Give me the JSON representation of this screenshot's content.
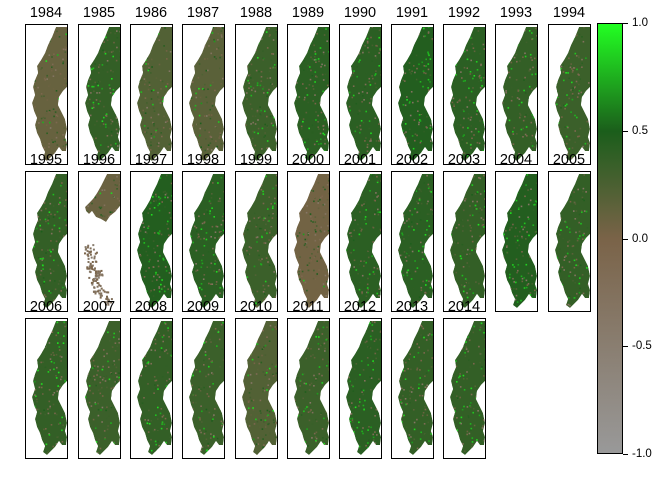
{
  "map": {
    "panels": [
      {
        "year": "1984",
        "ndvi_level": 0.12,
        "coverage": "full"
      },
      {
        "year": "1985",
        "ndvi_level": 0.45,
        "coverage": "full"
      },
      {
        "year": "1986",
        "ndvi_level": 0.25,
        "coverage": "full"
      },
      {
        "year": "1987",
        "ndvi_level": 0.2,
        "coverage": "full"
      },
      {
        "year": "1988",
        "ndvi_level": 0.4,
        "coverage": "full"
      },
      {
        "year": "1989",
        "ndvi_level": 0.5,
        "coverage": "full"
      },
      {
        "year": "1990",
        "ndvi_level": 0.5,
        "coverage": "full"
      },
      {
        "year": "1991",
        "ndvi_level": 0.55,
        "coverage": "full"
      },
      {
        "year": "1992",
        "ndvi_level": 0.5,
        "coverage": "full"
      },
      {
        "year": "1993",
        "ndvi_level": 0.45,
        "coverage": "full"
      },
      {
        "year": "1994",
        "ndvi_level": 0.4,
        "coverage": "full"
      },
      {
        "year": "1995",
        "ndvi_level": 0.45,
        "coverage": "full"
      },
      {
        "year": "1996",
        "ndvi_level": 0.1,
        "coverage": "partial"
      },
      {
        "year": "1997",
        "ndvi_level": 0.55,
        "coverage": "full"
      },
      {
        "year": "1998",
        "ndvi_level": 0.5,
        "coverage": "full"
      },
      {
        "year": "1999",
        "ndvi_level": 0.4,
        "coverage": "full"
      },
      {
        "year": "2000",
        "ndvi_level": 0.05,
        "coverage": "full"
      },
      {
        "year": "2001",
        "ndvi_level": 0.5,
        "coverage": "full"
      },
      {
        "year": "2002",
        "ndvi_level": 0.5,
        "coverage": "full"
      },
      {
        "year": "2003",
        "ndvi_level": 0.45,
        "coverage": "full"
      },
      {
        "year": "2004",
        "ndvi_level": 0.55,
        "coverage": "full"
      },
      {
        "year": "2005",
        "ndvi_level": 0.45,
        "coverage": "full"
      },
      {
        "year": "2006",
        "ndvi_level": 0.45,
        "coverage": "full"
      },
      {
        "year": "2007",
        "ndvi_level": 0.4,
        "coverage": "full"
      },
      {
        "year": "2008",
        "ndvi_level": 0.45,
        "coverage": "full"
      },
      {
        "year": "2009",
        "ndvi_level": 0.4,
        "coverage": "full"
      },
      {
        "year": "2010",
        "ndvi_level": 0.25,
        "coverage": "full"
      },
      {
        "year": "2011",
        "ndvi_level": 0.4,
        "coverage": "full"
      },
      {
        "year": "2012",
        "ndvi_level": 0.5,
        "coverage": "full"
      },
      {
        "year": "2013",
        "ndvi_level": 0.45,
        "coverage": "full"
      },
      {
        "year": "2014",
        "ndvi_level": 0.45,
        "coverage": "full"
      }
    ]
  },
  "legend": {
    "min": -1.0,
    "max": 1.0,
    "ticks": [
      "1.0",
      "0.5",
      "0.0",
      "-0.5",
      "-1.0"
    ],
    "colors": {
      "bottom": "#999999",
      "middle": "#7a6348",
      "upper": "#1b5e1b",
      "top": "#22ff22"
    }
  }
}
